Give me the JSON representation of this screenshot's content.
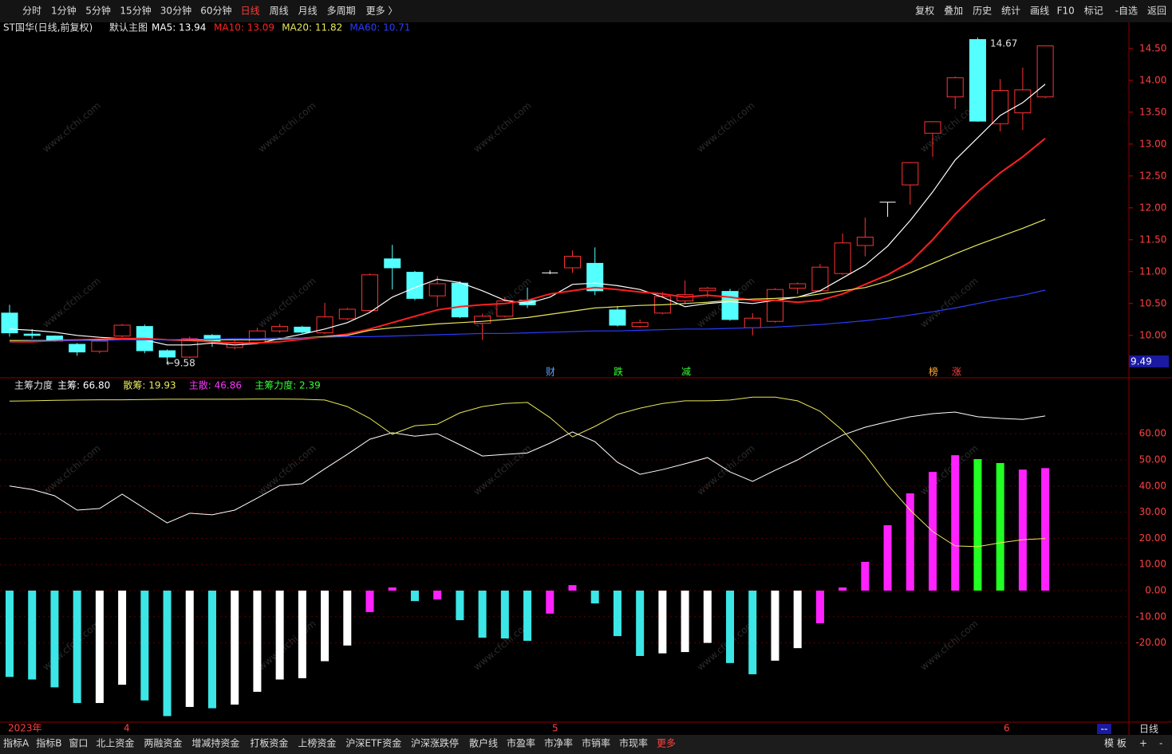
{
  "toolbar": {
    "left": [
      "分时",
      "1分钟",
      "5分钟",
      "15分钟",
      "30分钟",
      "60分钟",
      "日线",
      "周线",
      "月线",
      "多周期",
      "更多 〉"
    ],
    "active": "日线",
    "right": [
      "复权",
      "叠加",
      "历史",
      "统计",
      "画线",
      "F10",
      "标记",
      "-自选",
      "返回"
    ]
  },
  "watermark": "www.cfchi.com",
  "chart_data": [
    {
      "type": "candlestick",
      "title": "ST国华(日线,前复权)",
      "subtitle": "默认主图",
      "up_color": "#ff3232",
      "down_color": "#54ffff",
      "flat_color": "#ffffff",
      "open": [
        10.35,
        10.02,
        9.99,
        9.86,
        9.75,
        9.99,
        10.14,
        9.76,
        9.66,
        10.0,
        9.81,
        9.89,
        10.07,
        10.13,
        10.04,
        10.26,
        10.39,
        11.2,
        10.99,
        10.62,
        10.82,
        10.19,
        10.3,
        10.55,
        10.98,
        11.06,
        11.13,
        10.4,
        10.14,
        10.35,
        10.54,
        10.7,
        10.69,
        10.12,
        10.22,
        10.74,
        10.7,
        10.97,
        11.41,
        12.09,
        12.36,
        13.17,
        13.74,
        14.64,
        13.32,
        13.49,
        13.74
      ],
      "high": [
        10.48,
        10.1,
        10.0,
        9.88,
        9.93,
        10.18,
        10.17,
        9.78,
        9.98,
        10.02,
        9.92,
        10.12,
        10.18,
        10.15,
        10.51,
        10.43,
        10.97,
        11.42,
        11.01,
        10.93,
        10.85,
        10.34,
        10.6,
        10.75,
        11.02,
        11.33,
        11.38,
        10.46,
        10.25,
        10.68,
        10.86,
        10.76,
        10.73,
        10.35,
        10.74,
        10.83,
        11.12,
        11.6,
        11.85,
        12.09,
        12.72,
        13.36,
        14.06,
        14.67,
        14.02,
        14.2,
        14.54
      ],
      "low": [
        9.98,
        9.95,
        9.9,
        9.68,
        9.72,
        9.97,
        9.72,
        9.58,
        9.64,
        9.82,
        9.78,
        9.87,
        10.04,
        10.03,
        10.02,
        10.24,
        10.37,
        10.72,
        10.55,
        10.45,
        10.27,
        9.93,
        10.28,
        10.43,
        10.96,
        10.98,
        10.63,
        10.14,
        10.12,
        10.33,
        10.5,
        10.6,
        10.23,
        10.0,
        10.2,
        10.65,
        10.68,
        10.95,
        11.24,
        11.86,
        12.05,
        12.8,
        13.55,
        13.35,
        13.2,
        13.22,
        13.72
      ],
      "close": [
        10.04,
        10.0,
        9.91,
        9.74,
        9.91,
        10.16,
        9.76,
        9.66,
        9.95,
        9.91,
        9.89,
        10.07,
        10.14,
        10.05,
        10.29,
        10.41,
        10.95,
        11.06,
        10.58,
        10.81,
        10.29,
        10.3,
        10.54,
        10.48,
        10.98,
        11.24,
        10.7,
        10.16,
        10.2,
        10.61,
        10.64,
        10.74,
        10.25,
        10.27,
        10.72,
        10.81,
        11.07,
        11.45,
        11.54,
        12.09,
        12.71,
        13.35,
        14.04,
        13.36,
        13.84,
        13.85,
        14.54
      ],
      "ma": [
        {
          "name": "MA5",
          "label": "MA5: 13.94",
          "color": "#ffffff",
          "values": [
            10.1,
            10.08,
            10.05,
            10.0,
            9.97,
            9.95,
            9.93,
            9.85,
            9.85,
            9.88,
            9.85,
            9.87,
            9.95,
            10.02,
            10.1,
            10.2,
            10.36,
            10.6,
            10.75,
            10.88,
            10.83,
            10.7,
            10.55,
            10.5,
            10.6,
            10.8,
            10.82,
            10.78,
            10.72,
            10.6,
            10.45,
            10.5,
            10.53,
            10.5,
            10.55,
            10.6,
            10.7,
            10.9,
            11.1,
            11.4,
            11.8,
            12.25,
            12.75,
            13.1,
            13.45,
            13.65,
            13.94
          ]
        },
        {
          "name": "MA10",
          "label": "MA10: 13.09",
          "color": "#ff2020",
          "values": [
            9.9,
            9.9,
            9.92,
            9.93,
            9.94,
            9.95,
            9.95,
            9.93,
            9.92,
            9.9,
            9.88,
            9.88,
            9.9,
            9.94,
            9.98,
            10.02,
            10.1,
            10.2,
            10.3,
            10.4,
            10.45,
            10.48,
            10.5,
            10.55,
            10.65,
            10.7,
            10.75,
            10.72,
            10.68,
            10.65,
            10.6,
            10.63,
            10.6,
            10.55,
            10.55,
            10.52,
            10.55,
            10.65,
            10.8,
            10.95,
            11.15,
            11.5,
            11.9,
            12.25,
            12.55,
            12.8,
            13.09
          ]
        },
        {
          "name": "MA20",
          "label": "MA20: 11.82",
          "color": "#e8e85a",
          "values": [
            9.92,
            9.92,
            9.92,
            9.92,
            9.93,
            9.93,
            9.93,
            9.93,
            9.93,
            9.93,
            9.93,
            9.93,
            9.94,
            9.96,
            9.98,
            10.0,
            10.08,
            10.12,
            10.15,
            10.18,
            10.2,
            10.22,
            10.25,
            10.28,
            10.33,
            10.38,
            10.43,
            10.45,
            10.47,
            10.48,
            10.5,
            10.52,
            10.55,
            10.57,
            10.58,
            10.6,
            10.65,
            10.7,
            10.75,
            10.85,
            10.98,
            11.13,
            11.28,
            11.42,
            11.55,
            11.68,
            11.82
          ]
        },
        {
          "name": "MA60",
          "label": "MA60: 10.71",
          "color": "#2a3cff",
          "values": [
            9.9,
            9.91,
            9.91,
            9.92,
            9.92,
            9.93,
            9.93,
            9.93,
            9.94,
            9.94,
            9.95,
            9.95,
            9.96,
            9.96,
            9.97,
            9.98,
            9.98,
            9.99,
            10.0,
            10.01,
            10.02,
            10.03,
            10.03,
            10.04,
            10.05,
            10.06,
            10.07,
            10.07,
            10.08,
            10.09,
            10.1,
            10.1,
            10.11,
            10.12,
            10.13,
            10.15,
            10.17,
            10.2,
            10.23,
            10.27,
            10.32,
            10.37,
            10.43,
            10.5,
            10.57,
            10.63,
            10.71
          ]
        }
      ],
      "high_label": "14.67",
      "low_label": "←9.58",
      "price_marker": "9.49",
      "events": [
        "财",
        "跌",
        "减",
        "榜",
        "涨"
      ],
      "ylim": [
        9.41,
        14.91
      ],
      "yticks": [
        {
          "value": 10.0,
          "label": "10.00"
        },
        {
          "value": 10.5,
          "label": "10.50"
        },
        {
          "value": 11.0,
          "label": "11.00"
        },
        {
          "value": 11.5,
          "label": "11.50"
        },
        {
          "value": 12.0,
          "label": "12.00"
        },
        {
          "value": 12.5,
          "label": "12.50"
        },
        {
          "value": 13.0,
          "label": "13.00"
        },
        {
          "value": 13.5,
          "label": "13.50"
        },
        {
          "value": 14.0,
          "label": "14.00"
        },
        {
          "value": 14.5,
          "label": "14.50"
        }
      ],
      "x_labels": [
        "2023年",
        "4",
        "5",
        "6"
      ],
      "period_label": "日线"
    },
    {
      "type": "indicator",
      "title": "主筹力度",
      "header": [
        {
          "label": "主筹: 66.80",
          "color": "#ffffff"
        },
        {
          "label": "散筹: 19.93",
          "color": "#e8e85a"
        },
        {
          "label": "主散: 46.86",
          "color": "#ff33ff"
        },
        {
          "label": "主筹力度: 2.39",
          "color": "#33ff33"
        }
      ],
      "series": [
        {
          "name": "主筹",
          "color": "#ffffff",
          "values": [
            40,
            38.7,
            36.3,
            30.8,
            31.4,
            36.9,
            31.4,
            25.9,
            29.6,
            29,
            30.8,
            35.4,
            40.2,
            40.9,
            46.6,
            52.1,
            57.9,
            60.4,
            59.1,
            60,
            55.8,
            51.5,
            52.1,
            52.7,
            56.4,
            60.7,
            57,
            49.1,
            44.5,
            46.3,
            48.5,
            50.9,
            45.4,
            41.8,
            46,
            50,
            54.9,
            59.5,
            62.5,
            64.6,
            66.5,
            67.7,
            68.3,
            66.5,
            65.9,
            65.5,
            66.8
          ]
        },
        {
          "name": "散筹",
          "color": "#e8e85a",
          "values": [
            72.5,
            72.6,
            72.8,
            72.9,
            73,
            73,
            73.1,
            73.2,
            73.2,
            73.2,
            73.2,
            73.3,
            73.3,
            73.2,
            72.9,
            70.4,
            65.9,
            59.8,
            63.1,
            63.7,
            68,
            70.4,
            71.6,
            72,
            66.2,
            58.8,
            62.8,
            67.4,
            69.8,
            71.6,
            72.6,
            72.6,
            72.9,
            74,
            74,
            72.6,
            68.6,
            61.3,
            51.8,
            40.5,
            30.8,
            22.6,
            17.1,
            16.8,
            18.3,
            19.5,
            19.93
          ]
        }
      ],
      "bars": {
        "name": "主散",
        "values": [
          -33,
          -34,
          -37,
          -43,
          -43,
          -36,
          -42,
          -48,
          -44.5,
          -45,
          -43.6,
          -38.7,
          -34,
          -33.5,
          -27,
          -21,
          -8.2,
          1.2,
          -4,
          -3.4,
          -11.3,
          -18,
          -18.3,
          -19.2,
          -8.8,
          2.1,
          -4.9,
          -17.4,
          -25,
          -24,
          -23.5,
          -20,
          -27.7,
          -32,
          -26.8,
          -22,
          -12.5,
          1.2,
          11,
          25,
          37.2,
          45.4,
          51.8,
          50.3,
          48.8,
          46.3,
          46.86
        ],
        "colors": [
          "#3ce6e6",
          "#3ce6e6",
          "#3ce6e6",
          "#3ce6e6",
          "#ffffff",
          "#ffffff",
          "#3ce6e6",
          "#3ce6e6",
          "#ffffff",
          "#3ce6e6",
          "#ffffff",
          "#ffffff",
          "#ffffff",
          "#ffffff",
          "#ffffff",
          "#ffffff",
          "#ff22ff",
          "#ff22ff",
          "#3ce6e6",
          "#ff22ff",
          "#3ce6e6",
          "#3ce6e6",
          "#3ce6e6",
          "#3ce6e6",
          "#ff22ff",
          "#ff22ff",
          "#3ce6e6",
          "#3ce6e6",
          "#3ce6e6",
          "#ffffff",
          "#ffffff",
          "#ffffff",
          "#3ce6e6",
          "#3ce6e6",
          "#ffffff",
          "#ffffff",
          "#ff22ff",
          "#ff22ff",
          "#ff22ff",
          "#ff22ff",
          "#ff22ff",
          "#ff22ff",
          "#ff22ff",
          "#22ff22",
          "#22ff22",
          "#ff22ff",
          "#ff22ff"
        ]
      },
      "ylim": [
        -50,
        80.8
      ],
      "yticks": [
        {
          "value": 60,
          "label": "60.00"
        },
        {
          "value": 50,
          "label": "50.00"
        },
        {
          "value": 40,
          "label": "40.00"
        },
        {
          "value": 30,
          "label": "30.00"
        },
        {
          "value": 20,
          "label": "20.00"
        },
        {
          "value": 10,
          "label": "10.00"
        },
        {
          "value": 0,
          "label": "0.00"
        },
        {
          "value": -10,
          "label": "-10.00"
        },
        {
          "value": -20,
          "label": "-20.00"
        }
      ]
    }
  ],
  "bottom_tabs": {
    "items": [
      "指标A",
      "指标B",
      "窗口",
      "北上资金",
      "两融资金",
      "增减持资金",
      "打板资金",
      "上榜资金",
      "沪深ETF资金",
      "沪深涨跌停",
      "散户线",
      "市盈率",
      "市净率",
      "市销率",
      "市现率",
      "更多"
    ],
    "right": [
      "模 板",
      "+",
      "-"
    ],
    "status": "--"
  }
}
